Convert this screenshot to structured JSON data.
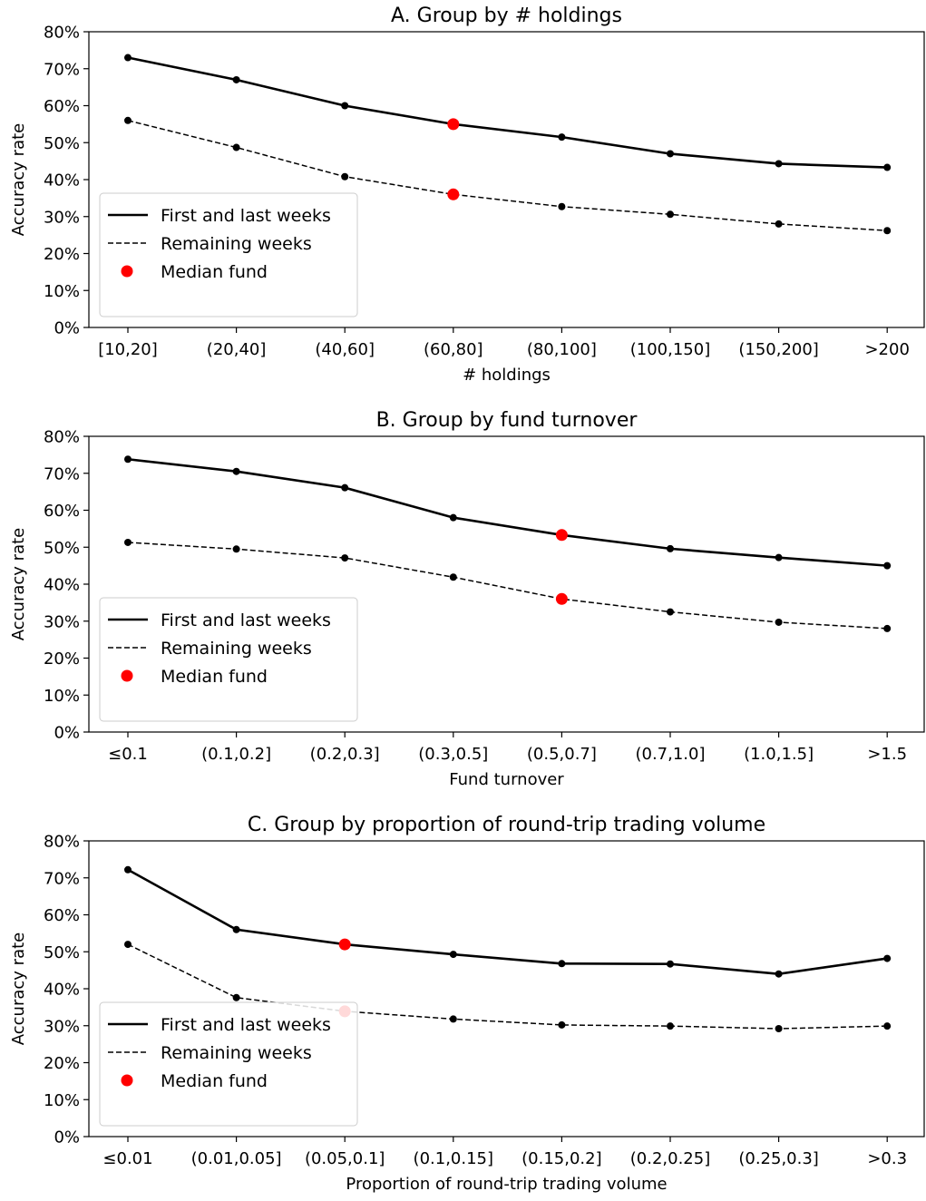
{
  "chart_data": [
    {
      "type": "line",
      "title": "A. Group by # holdings",
      "xlabel": "# holdings",
      "ylabel": "Accuracy rate",
      "ylim": [
        0,
        0.8
      ],
      "yticks": [
        "0%",
        "10%",
        "20%",
        "30%",
        "40%",
        "50%",
        "60%",
        "70%",
        "80%"
      ],
      "grid": false,
      "legend_position": "bottom-left",
      "categories": [
        "[10,20]",
        "(20,40]",
        "(40,60]",
        "(60,80]",
        "(80,100]",
        "(100,150]",
        "(150,200]",
        ">200"
      ],
      "series": [
        {
          "name": "First and last weeks",
          "style": "solid",
          "values": [
            0.73,
            0.67,
            0.6,
            0.55,
            0.515,
            0.47,
            0.443,
            0.433
          ]
        },
        {
          "name": "Remaining weeks",
          "style": "dashed",
          "values": [
            0.56,
            0.487,
            0.408,
            0.36,
            0.327,
            0.306,
            0.28,
            0.262
          ]
        }
      ],
      "median_index": 3,
      "median_label": "Median fund"
    },
    {
      "type": "line",
      "title": "B. Group by fund turnover",
      "xlabel": "Fund turnover",
      "ylabel": "Accuracy rate",
      "ylim": [
        0,
        0.8
      ],
      "yticks": [
        "0%",
        "10%",
        "20%",
        "30%",
        "40%",
        "50%",
        "60%",
        "70%",
        "80%"
      ],
      "grid": false,
      "legend_position": "bottom-left",
      "categories": [
        "≤0.1",
        "(0.1,0.2]",
        "(0.2,0.3]",
        "(0.3,0.5]",
        "(0.5,0.7]",
        "(0.7,1.0]",
        "(1.0,1.5]",
        ">1.5"
      ],
      "series": [
        {
          "name": "First and last weeks",
          "style": "solid",
          "values": [
            0.738,
            0.705,
            0.661,
            0.58,
            0.533,
            0.496,
            0.472,
            0.45
          ]
        },
        {
          "name": "Remaining weeks",
          "style": "dashed",
          "values": [
            0.513,
            0.495,
            0.471,
            0.419,
            0.36,
            0.325,
            0.297,
            0.28
          ]
        }
      ],
      "median_index": 4,
      "median_label": "Median fund"
    },
    {
      "type": "line",
      "title": "C. Group by proportion of round-trip trading volume",
      "xlabel": "Proportion of round-trip trading volume",
      "ylabel": "Accuracy rate",
      "ylim": [
        0,
        0.8
      ],
      "yticks": [
        "0%",
        "10%",
        "20%",
        "30%",
        "40%",
        "50%",
        "60%",
        "70%",
        "80%"
      ],
      "grid": false,
      "legend_position": "bottom-left",
      "categories": [
        "≤0.01",
        "(0.01,0.05]",
        "(0.05,0.1]",
        "(0.1,0.15]",
        "(0.15,0.2]",
        "(0.2,0.25]",
        "(0.25,0.3]",
        ">0.3"
      ],
      "series": [
        {
          "name": "First and last weeks",
          "style": "solid",
          "values": [
            0.722,
            0.56,
            0.52,
            0.493,
            0.468,
            0.467,
            0.44,
            0.482
          ]
        },
        {
          "name": "Remaining weeks",
          "style": "dashed",
          "values": [
            0.52,
            0.376,
            0.339,
            0.318,
            0.302,
            0.299,
            0.292,
            0.299
          ]
        }
      ],
      "median_index": 2,
      "median_label": "Median fund"
    }
  ]
}
